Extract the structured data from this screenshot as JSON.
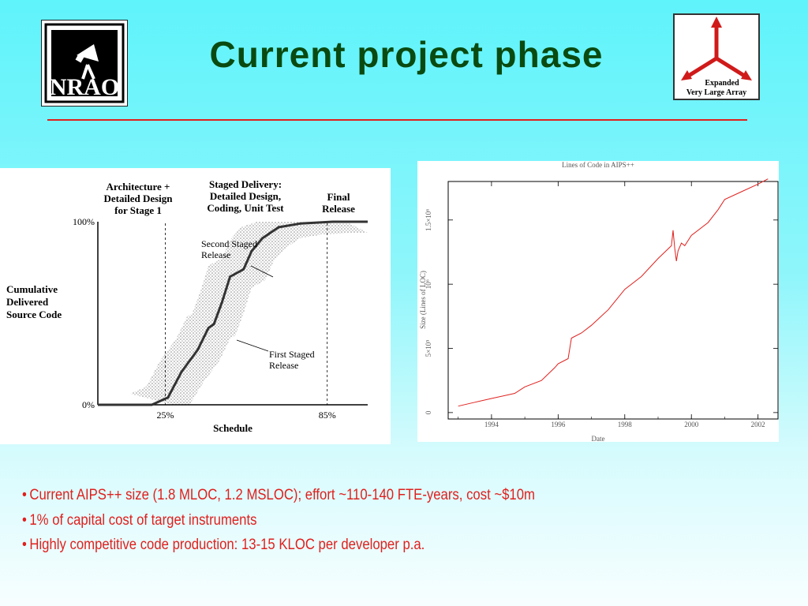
{
  "slide": {
    "title": "Current project phase",
    "title_color": "#0a4a10",
    "accent_color": "#e0201d"
  },
  "logos": {
    "nrao": {
      "text": "NRAO",
      "icon": "nrao-telescope-logo"
    },
    "evla": {
      "line1": "Expanded",
      "line2": "Very Large Array",
      "icon": "evla-y-array-logo"
    }
  },
  "bullets": [
    "Current AIPS++ size (1.8 MLOC, 1.2 MSLOC); effort ~110-140 FTE-years, cost ~$10m",
    "1% of capital cost of target instruments",
    "Highly competitive code production: 13-15 KLOC per developer p.a."
  ],
  "chart_data": [
    {
      "type": "line",
      "title": "",
      "xlabel": "Schedule",
      "ylabel": "Cumulative Delivered Source Code",
      "xlim": [
        0,
        100
      ],
      "ylim": [
        0,
        100
      ],
      "y_ticks": [
        "0%",
        "100%"
      ],
      "x_ticks": [
        {
          "x": 25,
          "label": "25%"
        },
        {
          "x": 85,
          "label": "85%"
        }
      ],
      "phase_labels": [
        "Architecture + Detailed Design for Stage 1",
        "Staged Delivery: Detailed Design, Coding, Unit Test",
        "Final Release"
      ],
      "annotations": [
        "Second Staged Release",
        "First Staged Release"
      ],
      "series": [
        {
          "x": [
            0,
            20,
            26,
            31,
            37,
            41,
            43,
            46,
            49,
            54,
            57,
            61,
            67,
            75,
            87,
            100
          ],
          "values": [
            0,
            0,
            4,
            18,
            30,
            42,
            44,
            56,
            70,
            74,
            84,
            91,
            97,
            99,
            100,
            100
          ],
          "color": "#333333",
          "band": "hatched"
        }
      ],
      "grid": false,
      "legend": "none"
    },
    {
      "type": "line",
      "title": "Lines of Code in AIPS++",
      "xlabel": "Date",
      "ylabel": "Size (Lines of LOC)",
      "xlim": [
        1992.7,
        2002.6
      ],
      "ylim": [
        -0.05,
        1.8
      ],
      "x_ticks": [
        "1994",
        "1996",
        "1998",
        "2000",
        "2002"
      ],
      "y_ticks": [
        {
          "v": 0,
          "label": "0"
        },
        {
          "v": 0.5,
          "label": "5×10⁵"
        },
        {
          "v": 1.0,
          "label": "10⁶"
        },
        {
          "v": 1.5,
          "label": "1.5×10⁶"
        }
      ],
      "series": [
        {
          "x": [
            1993.0,
            1993.5,
            1994.0,
            1994.7,
            1995.0,
            1995.5,
            1995.9,
            1996.0,
            1996.3,
            1996.4,
            1996.7,
            1997.0,
            1997.5,
            1998.0,
            1998.5,
            1999.0,
            1999.4,
            1999.45,
            1999.5,
            1999.55,
            1999.6,
            1999.7,
            1999.8,
            2000.0,
            2000.5,
            2000.8,
            2000.9,
            2001.0,
            2001.5,
            2002.0,
            2002.3
          ],
          "values": [
            0.05,
            0.08,
            0.11,
            0.15,
            0.2,
            0.25,
            0.35,
            0.38,
            0.42,
            0.58,
            0.62,
            0.68,
            0.8,
            0.96,
            1.06,
            1.2,
            1.3,
            1.42,
            1.28,
            1.18,
            1.26,
            1.32,
            1.3,
            1.38,
            1.48,
            1.58,
            1.62,
            1.66,
            1.72,
            1.78,
            1.82
          ],
          "color": "#e0201d"
        }
      ],
      "grid": false,
      "legend": "none"
    }
  ]
}
